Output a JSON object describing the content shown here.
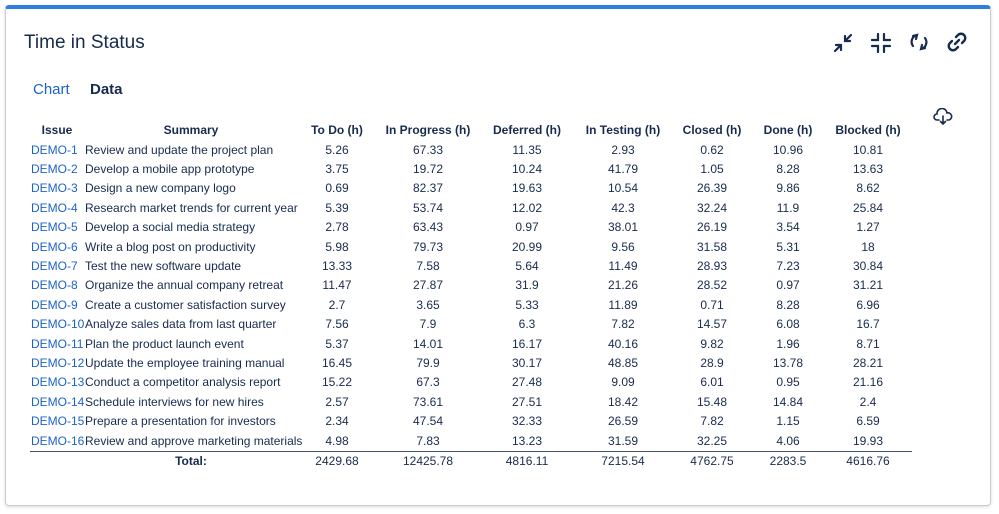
{
  "header": {
    "title": "Time in Status"
  },
  "tabs": [
    "Chart",
    "Data"
  ],
  "table": {
    "columns": [
      "Issue",
      "Summary",
      "To Do (h)",
      "In Progress (h)",
      "Deferred (h)",
      "In Testing (h)",
      "Closed (h)",
      "Done (h)",
      "Blocked (h)"
    ],
    "rows": [
      [
        "DEMO-1",
        "Review and update the project plan",
        "5.26",
        "67.33",
        "11.35",
        "2.93",
        "0.62",
        "10.96",
        "10.81"
      ],
      [
        "DEMO-2",
        "Develop a mobile app prototype",
        "3.75",
        "19.72",
        "10.24",
        "41.79",
        "1.05",
        "8.28",
        "13.63"
      ],
      [
        "DEMO-3",
        "Design a new company logo",
        "0.69",
        "82.37",
        "19.63",
        "10.54",
        "26.39",
        "9.86",
        "8.62"
      ],
      [
        "DEMO-4",
        "Research market trends for current year",
        "5.39",
        "53.74",
        "12.02",
        "42.3",
        "32.24",
        "11.9",
        "25.84"
      ],
      [
        "DEMO-5",
        "Develop a social media strategy",
        "2.78",
        "63.43",
        "0.97",
        "38.01",
        "26.19",
        "3.54",
        "1.27"
      ],
      [
        "DEMO-6",
        "Write a blog post on productivity",
        "5.98",
        "79.73",
        "20.99",
        "9.56",
        "31.58",
        "5.31",
        "18"
      ],
      [
        "DEMO-7",
        "Test the new software update",
        "13.33",
        "7.58",
        "5.64",
        "11.49",
        "28.93",
        "7.23",
        "30.84"
      ],
      [
        "DEMO-8",
        "Organize the annual company retreat",
        "11.47",
        "27.87",
        "31.9",
        "21.26",
        "28.52",
        "0.97",
        "31.21"
      ],
      [
        "DEMO-9",
        "Create a customer satisfaction survey",
        "2.7",
        "3.65",
        "5.33",
        "11.89",
        "0.71",
        "8.28",
        "6.96"
      ],
      [
        "DEMO-10",
        "Analyze sales data from last quarter",
        "7.56",
        "7.9",
        "6.3",
        "7.82",
        "14.57",
        "6.08",
        "16.7"
      ],
      [
        "DEMO-11",
        "Plan the product launch event",
        "5.37",
        "14.01",
        "16.17",
        "40.16",
        "9.82",
        "1.96",
        "8.71"
      ],
      [
        "DEMO-12",
        "Update the employee training manual",
        "16.45",
        "79.9",
        "30.17",
        "48.85",
        "28.9",
        "13.78",
        "28.21"
      ],
      [
        "DEMO-13",
        "Conduct a competitor analysis report",
        "15.22",
        "67.3",
        "27.48",
        "9.09",
        "6.01",
        "0.95",
        "21.16"
      ],
      [
        "DEMO-14",
        "Schedule interviews for new hires",
        "2.57",
        "73.61",
        "27.51",
        "18.42",
        "15.48",
        "14.84",
        "2.4"
      ],
      [
        "DEMO-15",
        "Prepare a presentation for investors",
        "2.34",
        "47.54",
        "32.33",
        "26.59",
        "7.82",
        "1.15",
        "6.59"
      ],
      [
        "DEMO-16",
        "Review and approve marketing materials",
        "4.98",
        "7.83",
        "13.23",
        "31.59",
        "32.25",
        "4.06",
        "19.93"
      ]
    ],
    "total_label": "Total:",
    "totals": [
      "2429.68",
      "12425.78",
      "4816.11",
      "7215.54",
      "4762.75",
      "2283.5",
      "4616.76"
    ]
  }
}
